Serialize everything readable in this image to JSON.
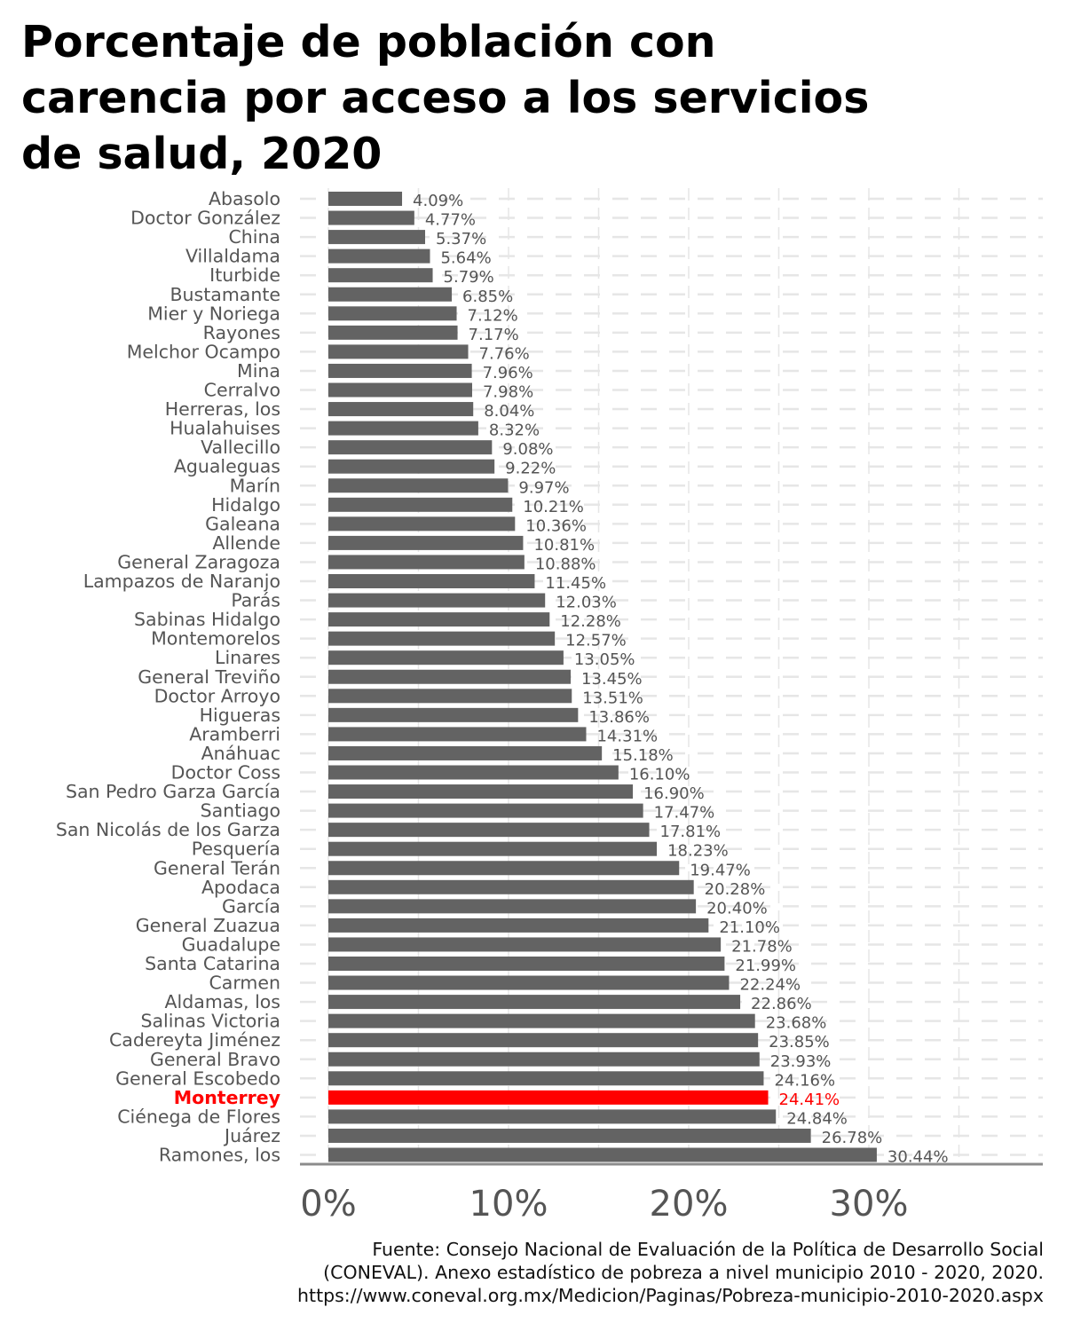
{
  "title_lines": [
    "Porcentaje de población con",
    "carencia por acceso a los servicios",
    "de salud, 2020"
  ],
  "source_lines": [
    "Fuente: Consejo Nacional de Evaluación de la Política de Desarrollo Social",
    "(CONEVAL). Anexo estadístico de pobreza a nivel municipio 2010 - 2020, 2020.",
    "https://www.coneval.org.mx/Medicion/Paginas/Pobreza-municipio-2010-2020.aspx"
  ],
  "colors": {
    "bar": "#636363",
    "highlight": "#ff0000",
    "label": "#555555",
    "grid": "#e6e6e6",
    "axis": "#8c8c8c"
  },
  "chart_data": {
    "type": "bar",
    "orientation": "horizontal",
    "title": "Porcentaje de población con carencia por acceso a los servicios de salud, 2020",
    "xlabel": "",
    "ylabel": "",
    "xlim": [
      0,
      39
    ],
    "xticks": [
      0,
      10,
      20,
      30
    ],
    "xtick_labels": [
      "0%",
      "10%",
      "20%",
      "30%"
    ],
    "grid": true,
    "highlight": "Monterrey",
    "categories": [
      "Abasolo",
      "Doctor González",
      "China",
      "Villaldama",
      "Iturbide",
      "Bustamante",
      "Mier y Noriega",
      "Rayones",
      "Melchor Ocampo",
      "Mina",
      "Cerralvo",
      "Herreras, los",
      "Hualahuises",
      "Vallecillo",
      "Agualeguas",
      "Marín",
      "Hidalgo",
      "Galeana",
      "Allende",
      "General Zaragoza",
      "Lampazos de Naranjo",
      "Parás",
      "Sabinas Hidalgo",
      "Montemorelos",
      "Linares",
      "General Treviño",
      "Doctor Arroyo",
      "Higueras",
      "Aramberri",
      "Anáhuac",
      "Doctor Coss",
      "San Pedro Garza García",
      "Santiago",
      "San Nicolás de los Garza",
      "Pesquería",
      "General Terán",
      "Apodaca",
      "García",
      "General Zuazua",
      "Guadalupe",
      "Santa Catarina",
      "Carmen",
      "Aldamas, los",
      "Salinas Victoria",
      "Cadereyta Jiménez",
      "General Bravo",
      "General Escobedo",
      "Monterrey",
      "Ciénega de Flores",
      "Juárez",
      "Ramones, los"
    ],
    "values": [
      4.09,
      4.77,
      5.37,
      5.64,
      5.79,
      6.85,
      7.12,
      7.17,
      7.76,
      7.96,
      7.98,
      8.04,
      8.32,
      9.08,
      9.22,
      9.97,
      10.21,
      10.36,
      10.81,
      10.88,
      11.45,
      12.03,
      12.28,
      12.57,
      13.05,
      13.45,
      13.51,
      13.86,
      14.31,
      15.18,
      16.1,
      16.9,
      17.47,
      17.81,
      18.23,
      19.47,
      20.28,
      20.4,
      21.1,
      21.78,
      21.99,
      22.24,
      22.86,
      23.68,
      23.85,
      23.93,
      24.16,
      24.41,
      24.84,
      26.78,
      30.44
    ],
    "value_labels": [
      "4.09%",
      "4.77%",
      "5.37%",
      "5.64%",
      "5.79%",
      "6.85%",
      "7.12%",
      "7.17%",
      "7.76%",
      "7.96%",
      "7.98%",
      "8.04%",
      "8.32%",
      "9.08%",
      "9.22%",
      "9.97%",
      "10.21%",
      "10.36%",
      "10.81%",
      "10.88%",
      "11.45%",
      "12.03%",
      "12.28%",
      "12.57%",
      "13.05%",
      "13.45%",
      "13.51%",
      "13.86%",
      "14.31%",
      "15.18%",
      "16.10%",
      "16.90%",
      "17.47%",
      "17.81%",
      "18.23%",
      "19.47%",
      "20.28%",
      "20.40%",
      "21.10%",
      "21.78%",
      "21.99%",
      "22.24%",
      "22.86%",
      "23.68%",
      "23.85%",
      "23.93%",
      "24.16%",
      "24.41%",
      "24.84%",
      "26.78%",
      "30.44%"
    ]
  }
}
